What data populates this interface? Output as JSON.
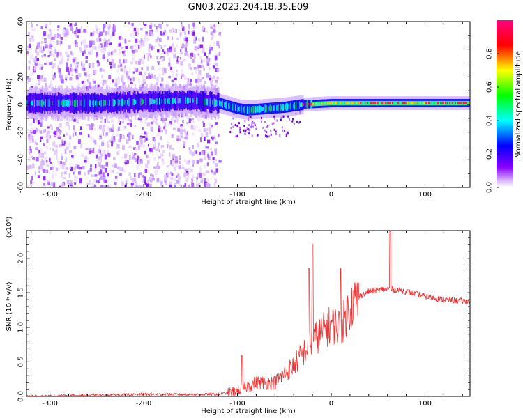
{
  "title": "GN03.2023.204.18.35.E09",
  "chart_data": [
    {
      "type": "heatmap",
      "title": "GN03.2023.204.18.35.E09",
      "xlabel": "Height of straight line (km)",
      "ylabel": "Frequency (Hz)",
      "xlim": [
        -325,
        148
      ],
      "ylim": [
        -60,
        60
      ],
      "x_ticks": [
        -300,
        -200,
        -100,
        0,
        100
      ],
      "y_ticks": [
        -60,
        -40,
        -20,
        0,
        20,
        40,
        60
      ],
      "colorbar": {
        "label": "Normalized spectral amplitude",
        "range": [
          0.0,
          1.0
        ],
        "ticks": [
          0.0,
          0.2,
          0.4,
          0.6,
          0.8
        ],
        "colormap": [
          "#ffffff",
          "#8b00ff",
          "#0000ff",
          "#00ffff",
          "#00ff00",
          "#ffff00",
          "#ff0000",
          "#ff0080"
        ]
      },
      "features": {
        "scatter_noise_x_range": [
          -325,
          -120
        ],
        "band_center_hz": [
          {
            "x": -325,
            "y": 1
          },
          {
            "x": -250,
            "y": 1
          },
          {
            "x": -200,
            "y": 2
          },
          {
            "x": -150,
            "y": 3
          },
          {
            "x": -120,
            "y": 1
          },
          {
            "x": -100,
            "y": -3
          },
          {
            "x": -90,
            "y": -4
          },
          {
            "x": -70,
            "y": -3
          },
          {
            "x": -50,
            "y": -2
          },
          {
            "x": -30,
            "y": 0
          },
          {
            "x": 0,
            "y": 1
          },
          {
            "x": 50,
            "y": 1
          },
          {
            "x": 100,
            "y": 1
          },
          {
            "x": 148,
            "y": 1
          }
        ]
      }
    },
    {
      "type": "line",
      "xlabel": "Height of straight line (km)",
      "ylabel": "SNR (10 * v/v)",
      "y_multiplier_label": "(x10⁴)",
      "xlim": [
        -325,
        148
      ],
      "ylim": [
        0,
        2.4
      ],
      "x_ticks": [
        -300,
        -200,
        -100,
        0,
        100
      ],
      "y_ticks": [
        0.0,
        0.5,
        1.0,
        1.5,
        2.0
      ],
      "color": "#ee3333",
      "trend": {
        "x": [
          -325,
          -200,
          -120,
          -100,
          -80,
          -60,
          -40,
          -20,
          0,
          10,
          20,
          30,
          40,
          60,
          80,
          100,
          120,
          148
        ],
        "y": [
          0.0,
          0.03,
          0.03,
          0.08,
          0.2,
          0.2,
          0.45,
          0.8,
          1.05,
          1.0,
          1.3,
          1.45,
          1.52,
          1.56,
          1.52,
          1.45,
          1.4,
          1.37
        ]
      },
      "spikes": [
        {
          "x": -95,
          "y": 0.6
        },
        {
          "x": -20,
          "y": 2.2
        },
        {
          "x": -24,
          "y": 1.85
        },
        {
          "x": 10,
          "y": 1.85
        },
        {
          "x": 63,
          "y": 2.4
        }
      ]
    }
  ]
}
